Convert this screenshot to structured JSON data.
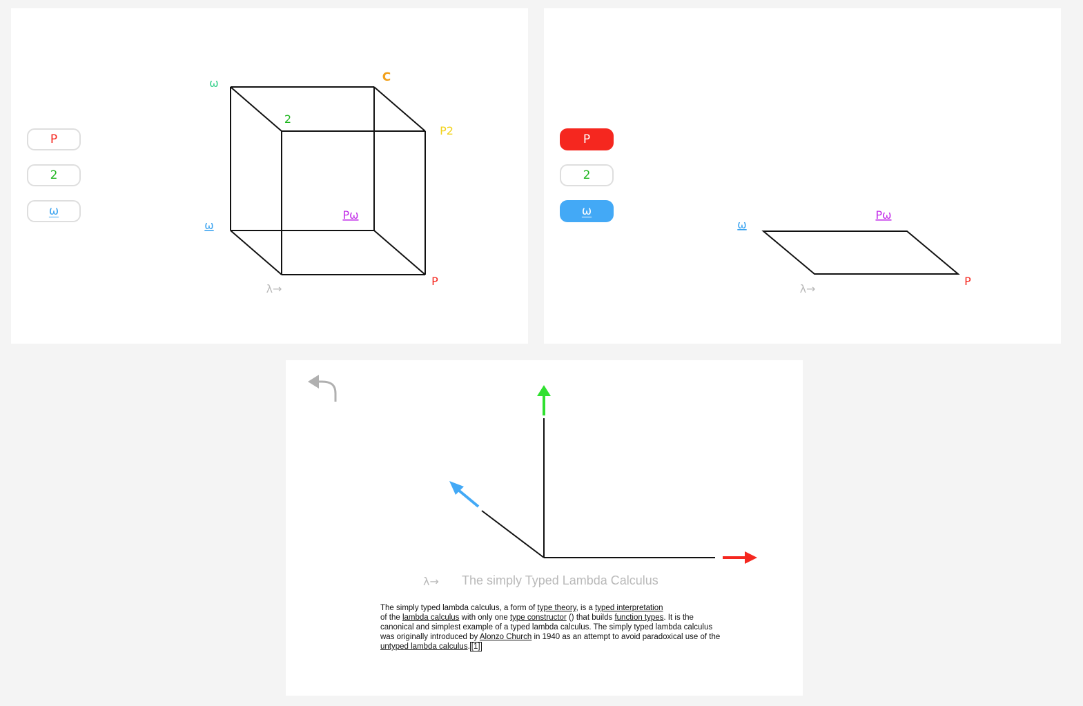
{
  "toggles": {
    "p": "P",
    "two": "2",
    "omega": "ω"
  },
  "cube": {
    "vertices": {
      "lambda_arrow": "λ→",
      "p": "P",
      "omega": "ω",
      "p_omega": "Pω",
      "two": "2",
      "p2": "P2",
      "omega_bar": "ω",
      "c": "C"
    }
  },
  "plane": {
    "vertices": {
      "lambda_arrow": "λ→",
      "p": "P",
      "omega": "ω",
      "p_omega": "Pω"
    }
  },
  "bottom": {
    "lambda_label": "λ→",
    "title": "The simply Typed Lambda Calculus",
    "description": {
      "t1": "The simply typed lambda calculus, a form of ",
      "l_type_theory": "type theory",
      "t2": ", is a ",
      "l_typed_interpretation": "typed interpretation",
      "t3": " of the ",
      "l_lambda_calculus": "lambda calculus",
      "t4": " with only one ",
      "l_type_constructor": "type constructor",
      "t5": " () that builds ",
      "l_function_types": "function types",
      "t6": ". It is the canonical and simplest example of a typed lambda calculus. The simply typed lambda calculus was originally introduced by ",
      "l_alonzo_church": "Alonzo Church",
      "t7": " in 1940 as an attempt to avoid paradoxical use of the ",
      "l_untyped": "untyped lambda calculus",
      "t8": ".",
      "l_ref": "[1]"
    }
  },
  "colors": {
    "p": "#f5271f",
    "two": "#1fb61f",
    "omega": "#3aa3f0",
    "p_omega": "#c22ce8",
    "p2": "#f2d21a",
    "omega_bar": "#33d08a",
    "arrow_up": "#2fe02f",
    "arrow_right": "#f5271f",
    "arrow_diag": "#43a9f6",
    "muted": "#b9b9b9"
  }
}
